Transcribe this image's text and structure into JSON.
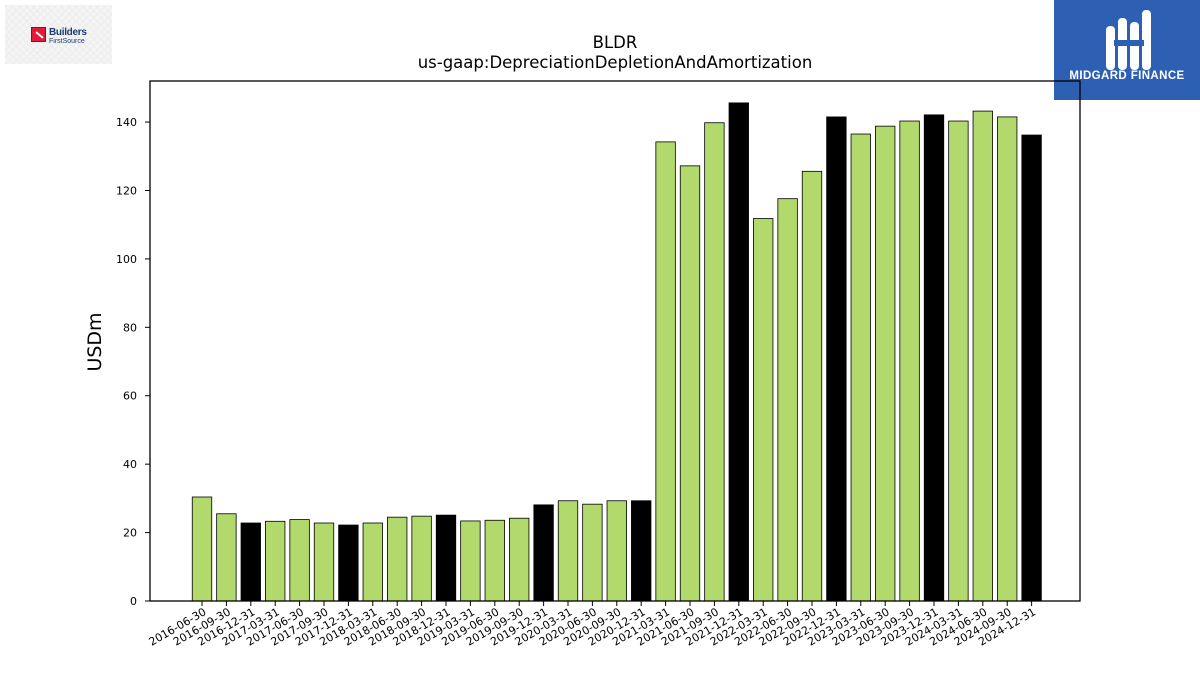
{
  "logos": {
    "left": {
      "word1": "Builders",
      "word2": "FirstSource"
    },
    "right": {
      "name": "MIDGARD FINANCE"
    }
  },
  "colors": {
    "normal": "#b1d96b",
    "year_end": "#000000",
    "edge": "#000000"
  },
  "chart_data": {
    "type": "bar",
    "title": "BLDR",
    "subtitle": "us-gaap:DepreciationDepletionAndAmortization",
    "xlabel": "",
    "ylabel": "USDm",
    "ylim": [
      0,
      152
    ],
    "yticks": [
      0,
      20,
      40,
      60,
      80,
      100,
      120,
      140
    ],
    "grid": false,
    "categories": [
      "2016-06-30",
      "2016-09-30",
      "2016-12-31",
      "2017-03-31",
      "2017-06-30",
      "2017-09-30",
      "2017-12-31",
      "2018-03-31",
      "2018-06-30",
      "2018-09-30",
      "2018-12-31",
      "2019-03-31",
      "2019-06-30",
      "2019-09-30",
      "2019-12-31",
      "2020-03-31",
      "2020-06-30",
      "2020-09-30",
      "2020-12-31",
      "2021-03-31",
      "2021-06-30",
      "2021-09-30",
      "2021-12-31",
      "2022-03-31",
      "2022-06-30",
      "2022-09-30",
      "2022-12-31",
      "2023-03-31",
      "2023-06-30",
      "2023-09-30",
      "2023-12-31",
      "2024-03-31",
      "2024-06-30",
      "2024-09-30",
      "2024-12-31"
    ],
    "values": [
      30.4,
      25.5,
      22.8,
      23.3,
      23.8,
      22.8,
      22.2,
      22.8,
      24.5,
      24.8,
      25.1,
      23.4,
      23.6,
      24.2,
      28.1,
      29.3,
      28.3,
      29.3,
      29.3,
      134.2,
      127.2,
      139.8,
      145.6,
      111.8,
      117.6,
      125.6,
      141.5,
      136.5,
      138.8,
      140.3,
      142.1,
      140.3,
      143.2,
      141.5,
      136.2
    ],
    "year_end_highlight": [
      false,
      false,
      true,
      false,
      false,
      false,
      true,
      false,
      false,
      false,
      true,
      false,
      false,
      false,
      true,
      false,
      false,
      false,
      true,
      false,
      false,
      false,
      true,
      false,
      false,
      false,
      true,
      false,
      false,
      false,
      true,
      false,
      false,
      false,
      true
    ]
  }
}
